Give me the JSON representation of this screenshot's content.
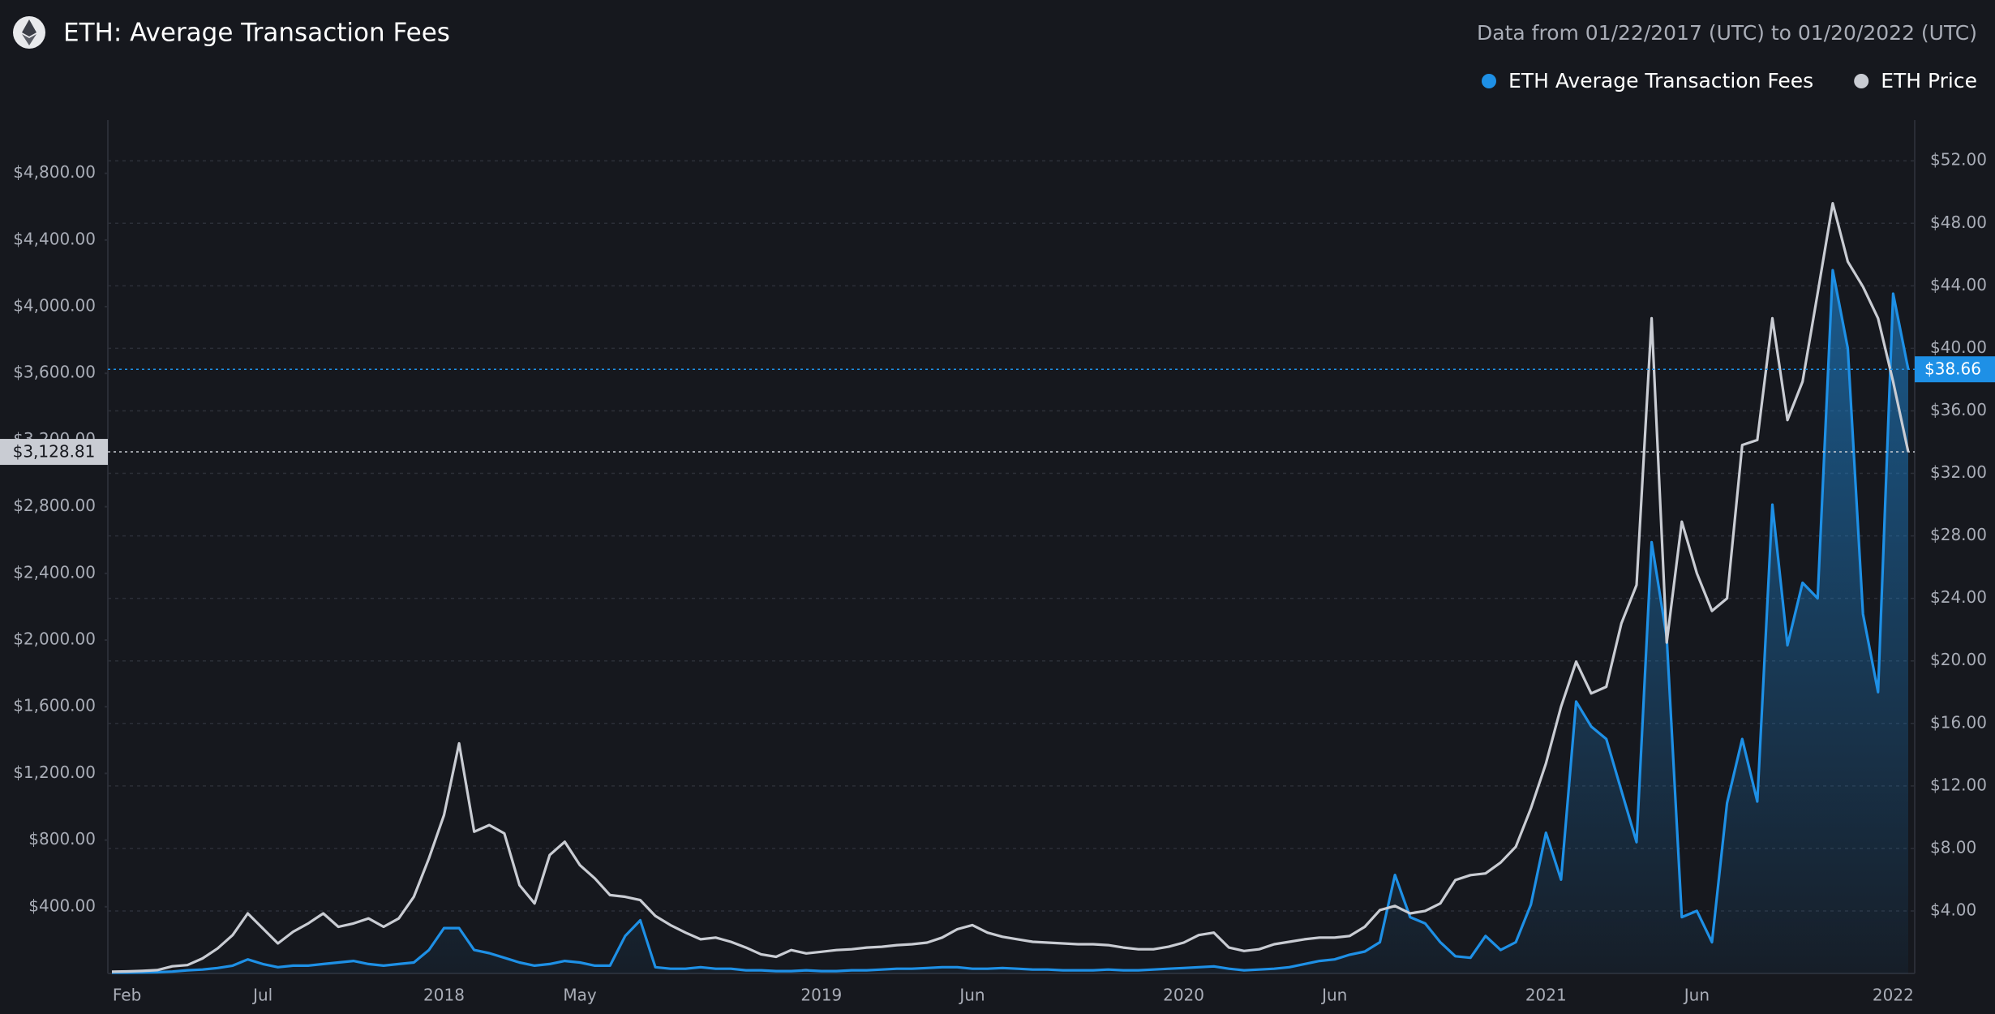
{
  "chart_data": {
    "type": "line",
    "title": "ETH: Average Transaction Fees",
    "subtitle": "Data from 01/22/2017 (UTC) to 01/20/2022 (UTC)",
    "categories": [
      null,
      "Feb",
      null,
      null,
      null,
      null,
      null,
      null,
      null,
      null,
      "Jul",
      null,
      null,
      null,
      null,
      null,
      null,
      null,
      null,
      null,
      null,
      null,
      "2018",
      null,
      null,
      null,
      null,
      null,
      null,
      null,
      null,
      "May",
      null,
      null,
      null,
      null,
      null,
      null,
      null,
      null,
      null,
      null,
      null,
      null,
      null,
      null,
      null,
      "2019",
      null,
      null,
      null,
      null,
      null,
      null,
      null,
      null,
      null,
      "Jun",
      null,
      null,
      null,
      null,
      null,
      null,
      null,
      null,
      null,
      null,
      null,
      null,
      null,
      "2020",
      null,
      null,
      null,
      null,
      null,
      null,
      null,
      null,
      null,
      "Jun",
      null,
      null,
      null,
      null,
      null,
      null,
      null,
      null,
      null,
      null,
      null,
      null,
      null,
      "2021",
      null,
      null,
      null,
      null,
      null,
      null,
      null,
      null,
      null,
      "Jun",
      null,
      null,
      null,
      null,
      null,
      null,
      null,
      null,
      null,
      null,
      null,
      null,
      "2022",
      null
    ],
    "series": [
      {
        "name": "ETH Average Transaction Fees",
        "color": "#1e90e6",
        "axis": "y2",
        "area": true,
        "last_label": "$38.66",
        "values": [
          0.05,
          0.05,
          0.06,
          0.08,
          0.12,
          0.2,
          0.25,
          0.35,
          0.5,
          0.9,
          0.6,
          0.4,
          0.5,
          0.5,
          0.6,
          0.7,
          0.8,
          0.6,
          0.5,
          0.6,
          0.7,
          1.5,
          2.9,
          2.9,
          1.5,
          1.3,
          1.0,
          0.7,
          0.5,
          0.6,
          0.8,
          0.7,
          0.5,
          0.5,
          2.4,
          3.4,
          0.4,
          0.3,
          0.3,
          0.4,
          0.3,
          0.3,
          0.2,
          0.2,
          0.15,
          0.15,
          0.2,
          0.15,
          0.15,
          0.2,
          0.2,
          0.25,
          0.3,
          0.3,
          0.35,
          0.4,
          0.4,
          0.3,
          0.3,
          0.35,
          0.3,
          0.25,
          0.25,
          0.2,
          0.2,
          0.2,
          0.25,
          0.2,
          0.2,
          0.25,
          0.3,
          0.35,
          0.4,
          0.45,
          0.3,
          0.2,
          0.25,
          0.3,
          0.4,
          0.6,
          0.8,
          0.9,
          1.2,
          1.4,
          2.0,
          6.3,
          3.6,
          3.2,
          2.0,
          1.1,
          1.0,
          2.4,
          1.5,
          2.0,
          4.4,
          9.0,
          6.0,
          17.4,
          15.8,
          15.0,
          11.7,
          8.4,
          27.6,
          21.5,
          3.6,
          4.0,
          2.0,
          10.9,
          15,
          11,
          30,
          21,
          25,
          24,
          45,
          40,
          23,
          18,
          43.5,
          38.66
        ]
      },
      {
        "name": "ETH Price",
        "color": "#c9ccd3",
        "axis": "y",
        "last_label": "$3,128.81",
        "values": [
          10,
          12,
          15,
          20,
          43,
          50,
          90,
          150,
          230,
          360,
          270,
          180,
          250,
          300,
          360,
          280,
          300,
          330,
          280,
          330,
          460,
          690,
          950,
          1380,
          850,
          890,
          840,
          530,
          420,
          710,
          790,
          650,
          570,
          470,
          460,
          440,
          345,
          290,
          245,
          205,
          215,
          190,
          155,
          115,
          100,
          140,
          120,
          130,
          140,
          145,
          155,
          160,
          170,
          175,
          185,
          215,
          265,
          290,
          245,
          220,
          205,
          190,
          185,
          180,
          175,
          175,
          170,
          155,
          145,
          145,
          160,
          185,
          230,
          245,
          155,
          135,
          145,
          175,
          190,
          205,
          215,
          215,
          225,
          280,
          380,
          405,
          360,
          375,
          420,
          560,
          590,
          600,
          665,
          760,
          990,
          1260,
          1600,
          1870,
          1680,
          1720,
          2100,
          2330,
          3930,
          1985,
          2710,
          2400,
          2175,
          2250,
          3170,
          3200,
          3930,
          3320,
          3550,
          4080,
          4620,
          4270,
          4120,
          3930,
          3550,
          3128.81
        ]
      }
    ],
    "ylim": [
      0,
      5100
    ],
    "yticks": [
      {
        "value": 400,
        "label": "$400.00"
      },
      {
        "value": 800,
        "label": "$800.00"
      },
      {
        "value": 1200,
        "label": "$1,200.00"
      },
      {
        "value": 1600,
        "label": "$1,600.00"
      },
      {
        "value": 2000,
        "label": "$2,000.00"
      },
      {
        "value": 2400,
        "label": "$2,400.00"
      },
      {
        "value": 2800,
        "label": "$2,800.00"
      },
      {
        "value": 3200,
        "label": "$3,200.00"
      },
      {
        "value": 3600,
        "label": "$3,600.00"
      },
      {
        "value": 4000,
        "label": "$4,000.00"
      },
      {
        "value": 4400,
        "label": "$4,400.00"
      },
      {
        "value": 4800,
        "label": "$4,800.00"
      }
    ],
    "y2lim": [
      0,
      54.4
    ],
    "y2ticks": [
      {
        "value": 4,
        "label": "$4.00"
      },
      {
        "value": 8,
        "label": "$8.00"
      },
      {
        "value": 12,
        "label": "$12.00"
      },
      {
        "value": 16,
        "label": "$16.00"
      },
      {
        "value": 20,
        "label": "$20.00"
      },
      {
        "value": 24,
        "label": "$24.00"
      },
      {
        "value": 28,
        "label": "$28.00"
      },
      {
        "value": 32,
        "label": "$32.00"
      },
      {
        "value": 36,
        "label": "$36.00"
      },
      {
        "value": 40,
        "label": "$40.00"
      },
      {
        "value": 44,
        "label": "$44.00"
      },
      {
        "value": 48,
        "label": "$48.00"
      },
      {
        "value": 52,
        "label": "$52.00"
      }
    ],
    "grid": "y2",
    "legend": "top-right"
  }
}
